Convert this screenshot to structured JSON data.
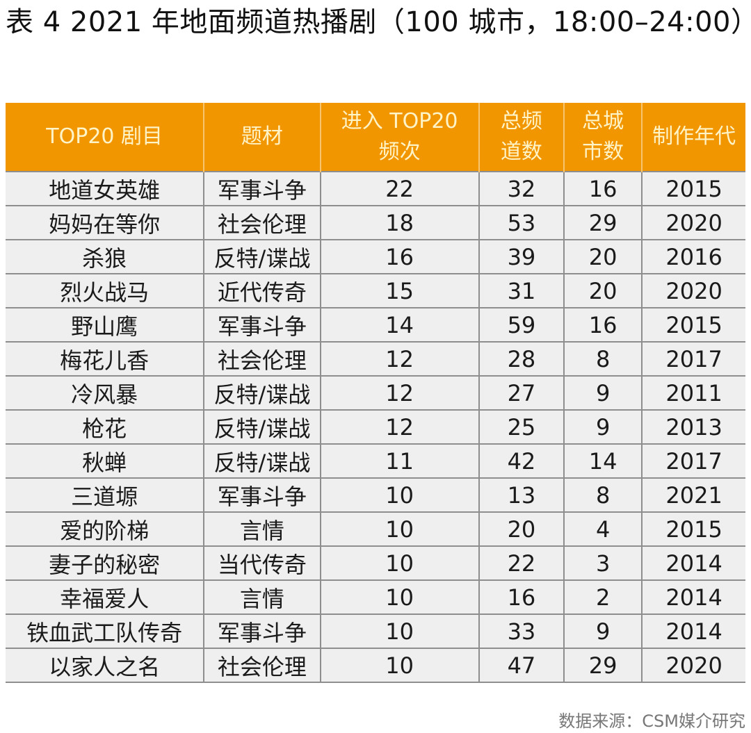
{
  "title": "表 4 2021 年地面频道热播剧（100 城市，18:00–24:00）",
  "colors": {
    "header_bg": "#f29600",
    "header_text": "#fff3c8",
    "row_bg": "#efefef",
    "grid": "#8e8e8e"
  },
  "table": {
    "headers": [
      "TOP20 剧目",
      "题材",
      "进入 TOP20 频次",
      "总频道数",
      "总城市数",
      "制作年代"
    ],
    "rows": [
      [
        "地道女英雄",
        "军事斗争",
        "22",
        "32",
        "16",
        "2015"
      ],
      [
        "妈妈在等你",
        "社会伦理",
        "18",
        "53",
        "29",
        "2020"
      ],
      [
        "杀狼",
        "反特/谍战",
        "16",
        "39",
        "20",
        "2016"
      ],
      [
        "烈火战马",
        "近代传奇",
        "15",
        "31",
        "20",
        "2020"
      ],
      [
        "野山鹰",
        "军事斗争",
        "14",
        "59",
        "16",
        "2015"
      ],
      [
        "梅花儿香",
        "社会伦理",
        "12",
        "28",
        "8",
        "2017"
      ],
      [
        "冷风暴",
        "反特/谍战",
        "12",
        "27",
        "9",
        "2011"
      ],
      [
        "枪花",
        "反特/谍战",
        "12",
        "25",
        "9",
        "2013"
      ],
      [
        "秋蝉",
        "反特/谍战",
        "11",
        "42",
        "14",
        "2017"
      ],
      [
        "三道塬",
        "军事斗争",
        "10",
        "13",
        "8",
        "2021"
      ],
      [
        "爱的阶梯",
        "言情",
        "10",
        "20",
        "4",
        "2015"
      ],
      [
        "妻子的秘密",
        "当代传奇",
        "10",
        "22",
        "3",
        "2014"
      ],
      [
        "幸福爱人",
        "言情",
        "10",
        "16",
        "2",
        "2014"
      ],
      [
        "铁血武工队传奇",
        "军事斗争",
        "10",
        "33",
        "9",
        "2014"
      ],
      [
        "以家人之名",
        "社会伦理",
        "10",
        "47",
        "29",
        "2020"
      ]
    ]
  },
  "source": "数据来源：CSM媒介研究"
}
